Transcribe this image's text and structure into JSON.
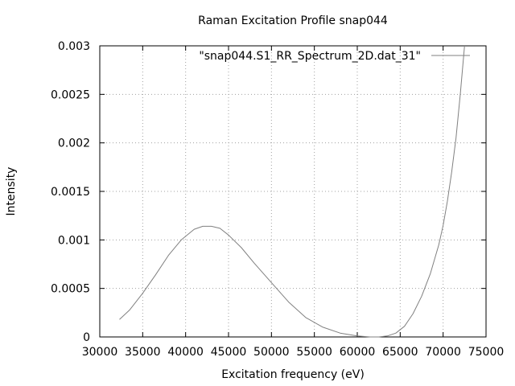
{
  "chart_data": {
    "type": "line",
    "title": "Raman Excitation Profile snap044",
    "xlabel": "Excitation frequency (eV)",
    "ylabel": "Intensity",
    "xlim": [
      30000,
      75000
    ],
    "ylim": [
      0,
      0.003
    ],
    "x_ticks": [
      30000,
      35000,
      40000,
      45000,
      50000,
      55000,
      60000,
      65000,
      70000,
      75000
    ],
    "y_ticks": [
      0,
      0.0005,
      0.001,
      0.0015,
      0.002,
      0.0025,
      0.003
    ],
    "x_tick_labels": [
      "30000",
      "35000",
      "40000",
      "45000",
      "50000",
      "55000",
      "60000",
      "65000",
      "70000",
      "75000"
    ],
    "y_tick_labels": [
      "0",
      "0.0005",
      "0.001",
      "0.0015",
      "0.002",
      "0.0025",
      "0.003"
    ],
    "grid": true,
    "legend_position": "top-right",
    "series": [
      {
        "name": "\"snap044.S1_RR_Spectrum_2D.dat_31\"",
        "color": "#808080",
        "x": [
          32300,
          33500,
          35000,
          36500,
          38000,
          39500,
          41000,
          42000,
          43000,
          44000,
          45000,
          46500,
          48000,
          50000,
          52000,
          54000,
          56000,
          58000,
          60000,
          61500,
          62500,
          63500,
          64500,
          65500,
          66500,
          67500,
          68500,
          69500,
          70000,
          70500,
          71000,
          71500,
          72000,
          72500
        ],
        "y": [
          0.00018,
          0.00028,
          0.00045,
          0.00064,
          0.00084,
          0.001,
          0.00111,
          0.00114,
          0.00114,
          0.00112,
          0.00105,
          0.00092,
          0.00076,
          0.00056,
          0.00036,
          0.0002,
          0.0001,
          4e-05,
          1e-05,
          0.0,
          0.0,
          1e-05,
          4e-05,
          0.00011,
          0.00024,
          0.00042,
          0.00065,
          0.00095,
          0.00115,
          0.0014,
          0.0017,
          0.00205,
          0.0025,
          0.003
        ]
      }
    ]
  }
}
